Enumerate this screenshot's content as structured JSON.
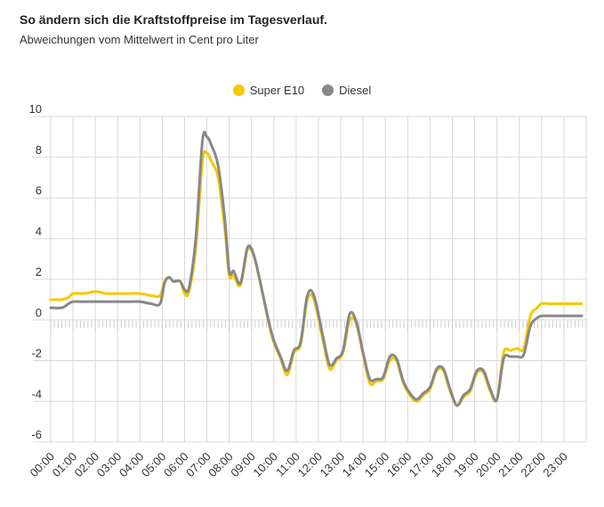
{
  "title": "So ändern sich die Kraftstoffpreise im Tagesverlauf.",
  "subtitle": "Abweichungen vom Mittelwert in Cent pro Liter",
  "chart_data": {
    "type": "line",
    "title": "So ändern sich die Kraftstoffpreise im Tagesverlauf.",
    "subtitle": "Abweichungen vom Mittelwert in Cent pro Liter",
    "xlabel": "",
    "ylabel": "",
    "ylim": [
      -6,
      10
    ],
    "yticks": [
      10,
      8,
      6,
      4,
      2,
      0,
      -2,
      -4,
      -6
    ],
    "xlim": [
      0,
      24
    ],
    "xticks": [
      "00:00",
      "01:00",
      "02:00",
      "03:00",
      "04:00",
      "05:00",
      "06:00",
      "07:00",
      "08:00",
      "09:00",
      "10:00",
      "11:00",
      "12:00",
      "13:00",
      "14:00",
      "15:00",
      "16:00",
      "17:00",
      "18:00",
      "19:00",
      "20:00",
      "21:00",
      "22:00",
      "23:00"
    ],
    "grid": true,
    "legend_position": "top-center",
    "series": [
      {
        "name": "Super E10",
        "color": "#f5c800",
        "x": [
          0,
          0.5,
          0.8,
          1,
          1.5,
          2,
          2.5,
          3,
          3.5,
          4,
          4.5,
          4.9,
          5.1,
          5.3,
          5.5,
          5.8,
          6.0,
          6.2,
          6.5,
          6.8,
          7.0,
          7.2,
          7.5,
          7.8,
          8.0,
          8.2,
          8.5,
          8.8,
          9.0,
          9.2,
          9.5,
          9.8,
          10.0,
          10.3,
          10.6,
          10.9,
          11.2,
          11.5,
          11.8,
          12.2,
          12.5,
          12.8,
          13.1,
          13.4,
          13.7,
          14.0,
          14.3,
          14.6,
          14.9,
          15.2,
          15.5,
          15.8,
          16.1,
          16.4,
          16.7,
          17.0,
          17.3,
          17.6,
          17.9,
          18.2,
          18.5,
          18.8,
          19.1,
          19.4,
          19.7,
          20.0,
          20.3,
          20.6,
          20.9,
          21.2,
          21.5,
          21.8,
          22.0,
          22.3,
          22.6,
          22.9,
          23.1,
          23.3,
          23.6,
          23.8
        ],
        "values": [
          1.0,
          1.0,
          1.1,
          1.3,
          1.3,
          1.4,
          1.3,
          1.3,
          1.3,
          1.3,
          1.2,
          1.2,
          1.9,
          2.1,
          1.9,
          1.9,
          1.3,
          1.4,
          3.5,
          7.8,
          8.2,
          7.8,
          7.0,
          4.5,
          2.2,
          2.2,
          1.7,
          3.4,
          3.4,
          2.8,
          1.3,
          -0.3,
          -1.1,
          -1.9,
          -2.7,
          -1.6,
          -1.2,
          1.0,
          1.0,
          -1.0,
          -2.4,
          -2.0,
          -1.6,
          0.0,
          -0.2,
          -1.7,
          -3.1,
          -3.0,
          -2.9,
          -2.0,
          -2.0,
          -3.1,
          -3.7,
          -4.0,
          -3.7,
          -3.4,
          -2.5,
          -2.5,
          -3.5,
          -4.2,
          -3.8,
          -3.5,
          -2.6,
          -2.6,
          -3.5,
          -3.9,
          -1.6,
          -1.5,
          -1.4,
          -1.4,
          0.2,
          0.6,
          0.8,
          0.8,
          0.8,
          0.8,
          0.8,
          0.8,
          0.8,
          0.8
        ]
      },
      {
        "name": "Diesel",
        "color": "#888888",
        "x": [
          0,
          0.5,
          0.8,
          1,
          1.5,
          2,
          2.5,
          3,
          3.5,
          4,
          4.5,
          4.9,
          5.1,
          5.3,
          5.5,
          5.8,
          6.0,
          6.2,
          6.5,
          6.8,
          7.0,
          7.2,
          7.5,
          7.8,
          8.0,
          8.2,
          8.5,
          8.8,
          9.0,
          9.2,
          9.5,
          9.8,
          10.0,
          10.3,
          10.6,
          10.9,
          11.2,
          11.5,
          11.8,
          12.2,
          12.5,
          12.8,
          13.1,
          13.4,
          13.7,
          14.0,
          14.3,
          14.6,
          14.9,
          15.2,
          15.5,
          15.8,
          16.1,
          16.4,
          16.7,
          17.0,
          17.3,
          17.6,
          17.9,
          18.2,
          18.5,
          18.8,
          19.1,
          19.4,
          19.7,
          20.0,
          20.3,
          20.6,
          20.9,
          21.2,
          21.5,
          21.8,
          22.0,
          22.3,
          22.6,
          22.9,
          23.1,
          23.3,
          23.6,
          23.8
        ],
        "values": [
          0.6,
          0.6,
          0.8,
          0.9,
          0.9,
          0.9,
          0.9,
          0.9,
          0.9,
          0.9,
          0.8,
          0.8,
          1.8,
          2.1,
          1.9,
          1.9,
          1.5,
          1.6,
          4.0,
          8.8,
          9.0,
          8.6,
          7.6,
          5.0,
          2.4,
          2.4,
          1.8,
          3.5,
          3.5,
          2.8,
          1.3,
          -0.2,
          -1.0,
          -1.8,
          -2.5,
          -1.5,
          -1.1,
          1.2,
          1.2,
          -0.8,
          -2.2,
          -1.9,
          -1.5,
          0.3,
          -0.1,
          -1.6,
          -2.9,
          -2.9,
          -2.8,
          -1.8,
          -1.9,
          -3.0,
          -3.6,
          -3.9,
          -3.6,
          -3.3,
          -2.4,
          -2.4,
          -3.4,
          -4.2,
          -3.7,
          -3.4,
          -2.5,
          -2.5,
          -3.4,
          -3.9,
          -1.9,
          -1.8,
          -1.8,
          -1.7,
          -0.3,
          0.1,
          0.2,
          0.2,
          0.2,
          0.2,
          0.2,
          0.2,
          0.2,
          0.2
        ]
      }
    ]
  }
}
